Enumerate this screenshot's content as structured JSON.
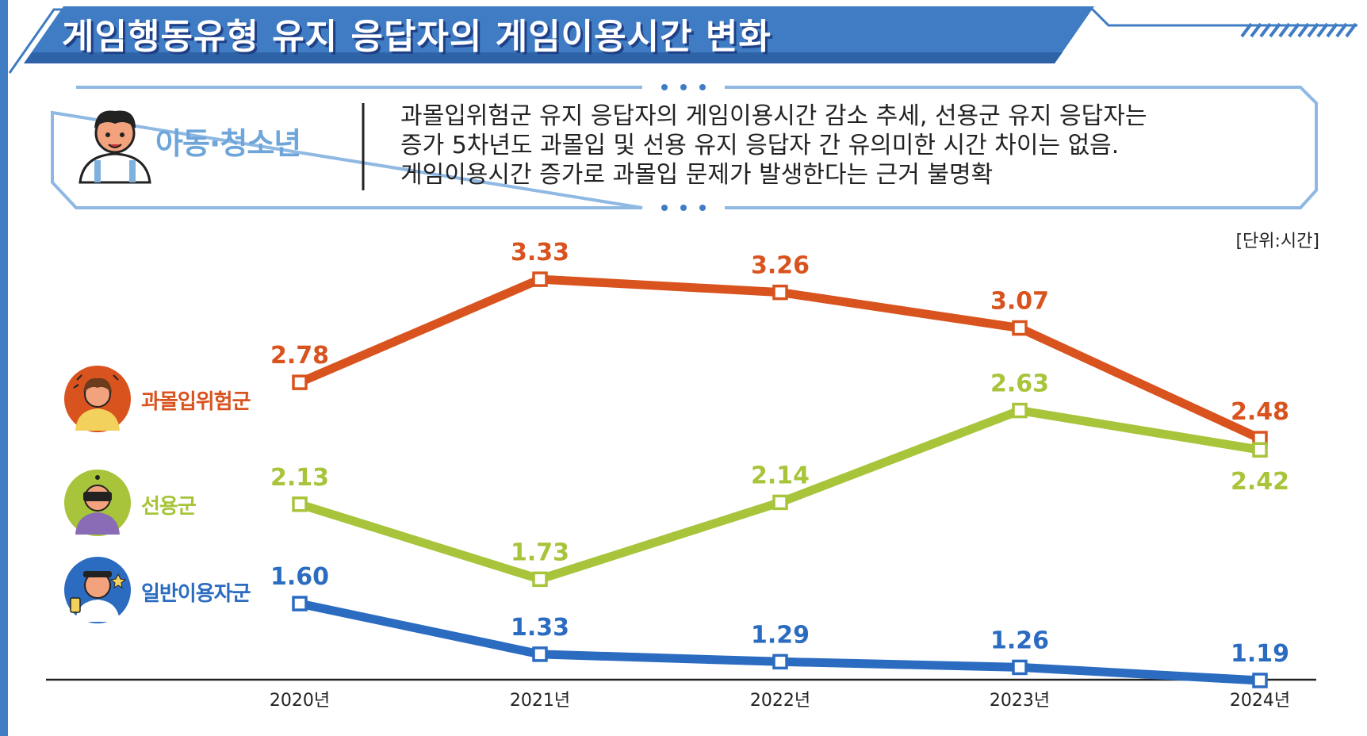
{
  "header": {
    "title": "게임행동유형 유지 응답자의 게임이용시간 변화"
  },
  "summary_box": {
    "group_label": "아동·청소년",
    "lines": [
      "과몰입위험군 유지 응답자의 게임이용시간 감소 추세, 선용군 유지 응답자는",
      "증가 5차년도 과몰입 및 선용 유지 응답자 간 유의미한 시간 차이는 없음.",
      "게임이용시간 증가로 과몰입 문제가 발생한다는 근거 불명확"
    ]
  },
  "unit_label": "[단위:시간]",
  "colors": {
    "header_blue": "#3f7cc4",
    "header_dark": "#1f3f86",
    "box_border": "#8fb8e3",
    "risk": "#d9531e",
    "good": "#a7c43a",
    "general": "#2b6cc1"
  },
  "icons": {
    "summary_avatar": "kid-avatar-icon",
    "risk": "stressed-person-icon",
    "good": "vr-headset-person-icon",
    "general": "gamer-person-icon"
  },
  "chart_data": {
    "type": "line",
    "categories": [
      "2020년",
      "2021년",
      "2022년",
      "2023년",
      "2024년"
    ],
    "ylim": [
      1.0,
      3.5
    ],
    "grid": false,
    "legend_placement": "left",
    "series": [
      {
        "key": "risk",
        "name": "과몰입위험군",
        "values": [
          2.78,
          3.33,
          3.26,
          3.07,
          2.48
        ],
        "labels": [
          "2.78",
          "3.33",
          "3.26",
          "3.07",
          "2.48"
        ]
      },
      {
        "key": "good",
        "name": "선용군",
        "values": [
          2.13,
          1.73,
          2.14,
          2.63,
          2.42
        ],
        "labels": [
          "2.13",
          "1.73",
          "2.14",
          "2.63",
          "2.42"
        ]
      },
      {
        "key": "general",
        "name": "일반이용자군",
        "values": [
          1.6,
          1.33,
          1.29,
          1.26,
          1.19
        ],
        "labels": [
          "1.60",
          "1.33",
          "1.29",
          "1.26",
          "1.19"
        ]
      }
    ]
  }
}
